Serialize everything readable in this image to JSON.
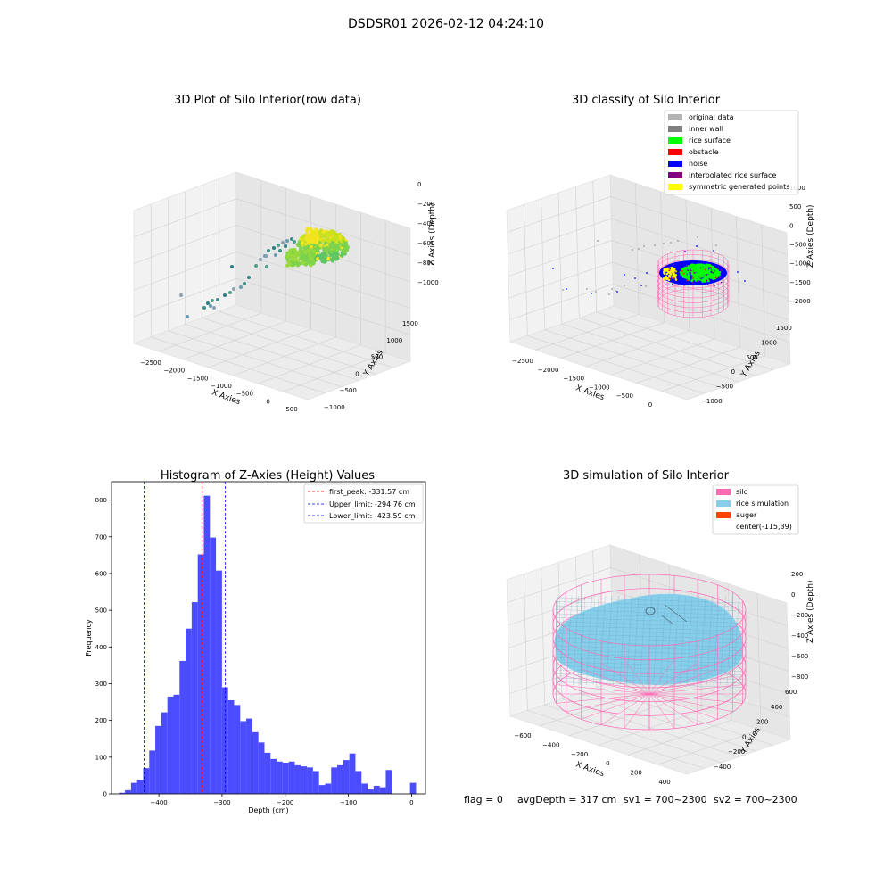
{
  "figure_title": "DSDSR01 2026-02-12 04:24:10",
  "status_line": {
    "flag": "flag = 0",
    "avg_depth": "avgDepth = 317 cm",
    "sv1": "sv1 = 700~2300",
    "sv2": "sv2 = 700~2300"
  },
  "colors": {
    "hist_bar": "#4b4bff",
    "peak_line": "#ff0000",
    "limit_line": "#0000ff",
    "original_data": "#b3b3b3",
    "inner_wall": "#808080",
    "rice_surface": "#00ff00",
    "obstacle": "#ff0000",
    "noise": "#0000ff",
    "interpolated": "#800080",
    "symmetric": "#ffff00",
    "silo": "#ff69b4",
    "rice_sim": "#87ceeb",
    "auger": "#ff4500"
  },
  "chart_data": [
    {
      "type": "scatter",
      "title": "3D Plot of Silo Interior(row data)",
      "xlabel": "X Axies",
      "ylabel": "Y Axies",
      "zlabel": "Z Axies (Depth)",
      "x_ticks": [
        "−2500",
        "−2000",
        "−1500",
        "−1000",
        "−500",
        "0",
        "500"
      ],
      "y_ticks": [
        "−1000",
        "−500",
        "0",
        "500",
        "1000",
        "1500"
      ],
      "z_ticks": [
        "0",
        "−200",
        "−400",
        "−600",
        "−800",
        "−1000"
      ]
    },
    {
      "type": "scatter",
      "title": "3D classify of Silo Interior",
      "xlabel": "X Axies",
      "ylabel": "Y Axies",
      "zlabel": "Z Axies (Depth)",
      "x_ticks": [
        "−2500",
        "−2000",
        "−1500",
        "−1000",
        "−500",
        "0"
      ],
      "y_ticks": [
        "−1000",
        "−500",
        "0",
        "500",
        "1000",
        "1500"
      ],
      "z_ticks": [
        "1000",
        "500",
        "0",
        "−500",
        "−1000",
        "−1500",
        "−2000"
      ],
      "legend": [
        "original data",
        "inner wall",
        "rice surface",
        "obstacle",
        "noise",
        "interpolated rice surface",
        "symmetric generated points"
      ],
      "legend_position": "top-right"
    },
    {
      "type": "bar",
      "title": "Histogram of Z-Axies (Height) Values",
      "xlabel": "Depth (cm)",
      "ylabel": "Frequency",
      "xlim": [
        -475,
        22
      ],
      "ylim": [
        0,
        850
      ],
      "x_ticks": [
        -400,
        -300,
        -200,
        -100,
        0
      ],
      "y_ticks": [
        0,
        100,
        200,
        300,
        400,
        500,
        600,
        700,
        800
      ],
      "bin_width": 9.6,
      "bin_starts": [
        -463.3,
        -453.7,
        -444.1,
        -434.5,
        -424.9,
        -415.3,
        -405.7,
        -396.1,
        -386.5,
        -376.9,
        -367.3,
        -357.7,
        -348.1,
        -338.5,
        -328.9,
        -319.3,
        -309.7,
        -300.1,
        -290.5,
        -280.9,
        -271.3,
        -261.7,
        -252.1,
        -242.5,
        -232.9,
        -223.3,
        -213.7,
        -204.1,
        -194.5,
        -184.9,
        -175.3,
        -165.7,
        -156.1,
        -146.5,
        -136.9,
        -127.3,
        -117.7,
        -108.1,
        -98.5,
        -88.9,
        -79.3,
        -69.7,
        -60.1,
        -50.5,
        -40.9,
        -31.3,
        -21.7,
        -12.1,
        -2.5
      ],
      "values": [
        3,
        10,
        30,
        38,
        70,
        118,
        185,
        222,
        265,
        270,
        362,
        450,
        522,
        652,
        812,
        698,
        608,
        290,
        255,
        242,
        198,
        205,
        168,
        140,
        112,
        95,
        88,
        85,
        88,
        78,
        75,
        72,
        62,
        24,
        28,
        72,
        78,
        92,
        110,
        62,
        28,
        12,
        22,
        18,
        65,
        0,
        0,
        0,
        30
      ],
      "vlines": [
        {
          "label": "first_peak: -331.57 cm",
          "x": -331.57,
          "color": "#ff0000"
        },
        {
          "label": "Upper_limit: -294.76 cm",
          "x": -294.76,
          "color": "#0000ff"
        },
        {
          "label": "Lower_limit: -423.59 cm",
          "x": -423.59,
          "color": "#0000ff"
        }
      ],
      "legend_position": "top-right"
    },
    {
      "type": "surface",
      "title": "3D simulation of Silo Interior",
      "xlabel": "X Axies",
      "ylabel": "Y Axies",
      "zlabel": "Z Axies (Depth)",
      "x_ticks": [
        "−600",
        "−400",
        "−200",
        "0",
        "200",
        "400"
      ],
      "y_ticks": [
        "−400",
        "−200",
        "0",
        "200",
        "400",
        "600"
      ],
      "z_ticks": [
        "200",
        "0",
        "−200",
        "−400",
        "−600",
        "−800"
      ],
      "legend": [
        "silo",
        "rice simulation",
        "auger",
        "center(-115,39)"
      ],
      "legend_position": "top-right"
    }
  ]
}
